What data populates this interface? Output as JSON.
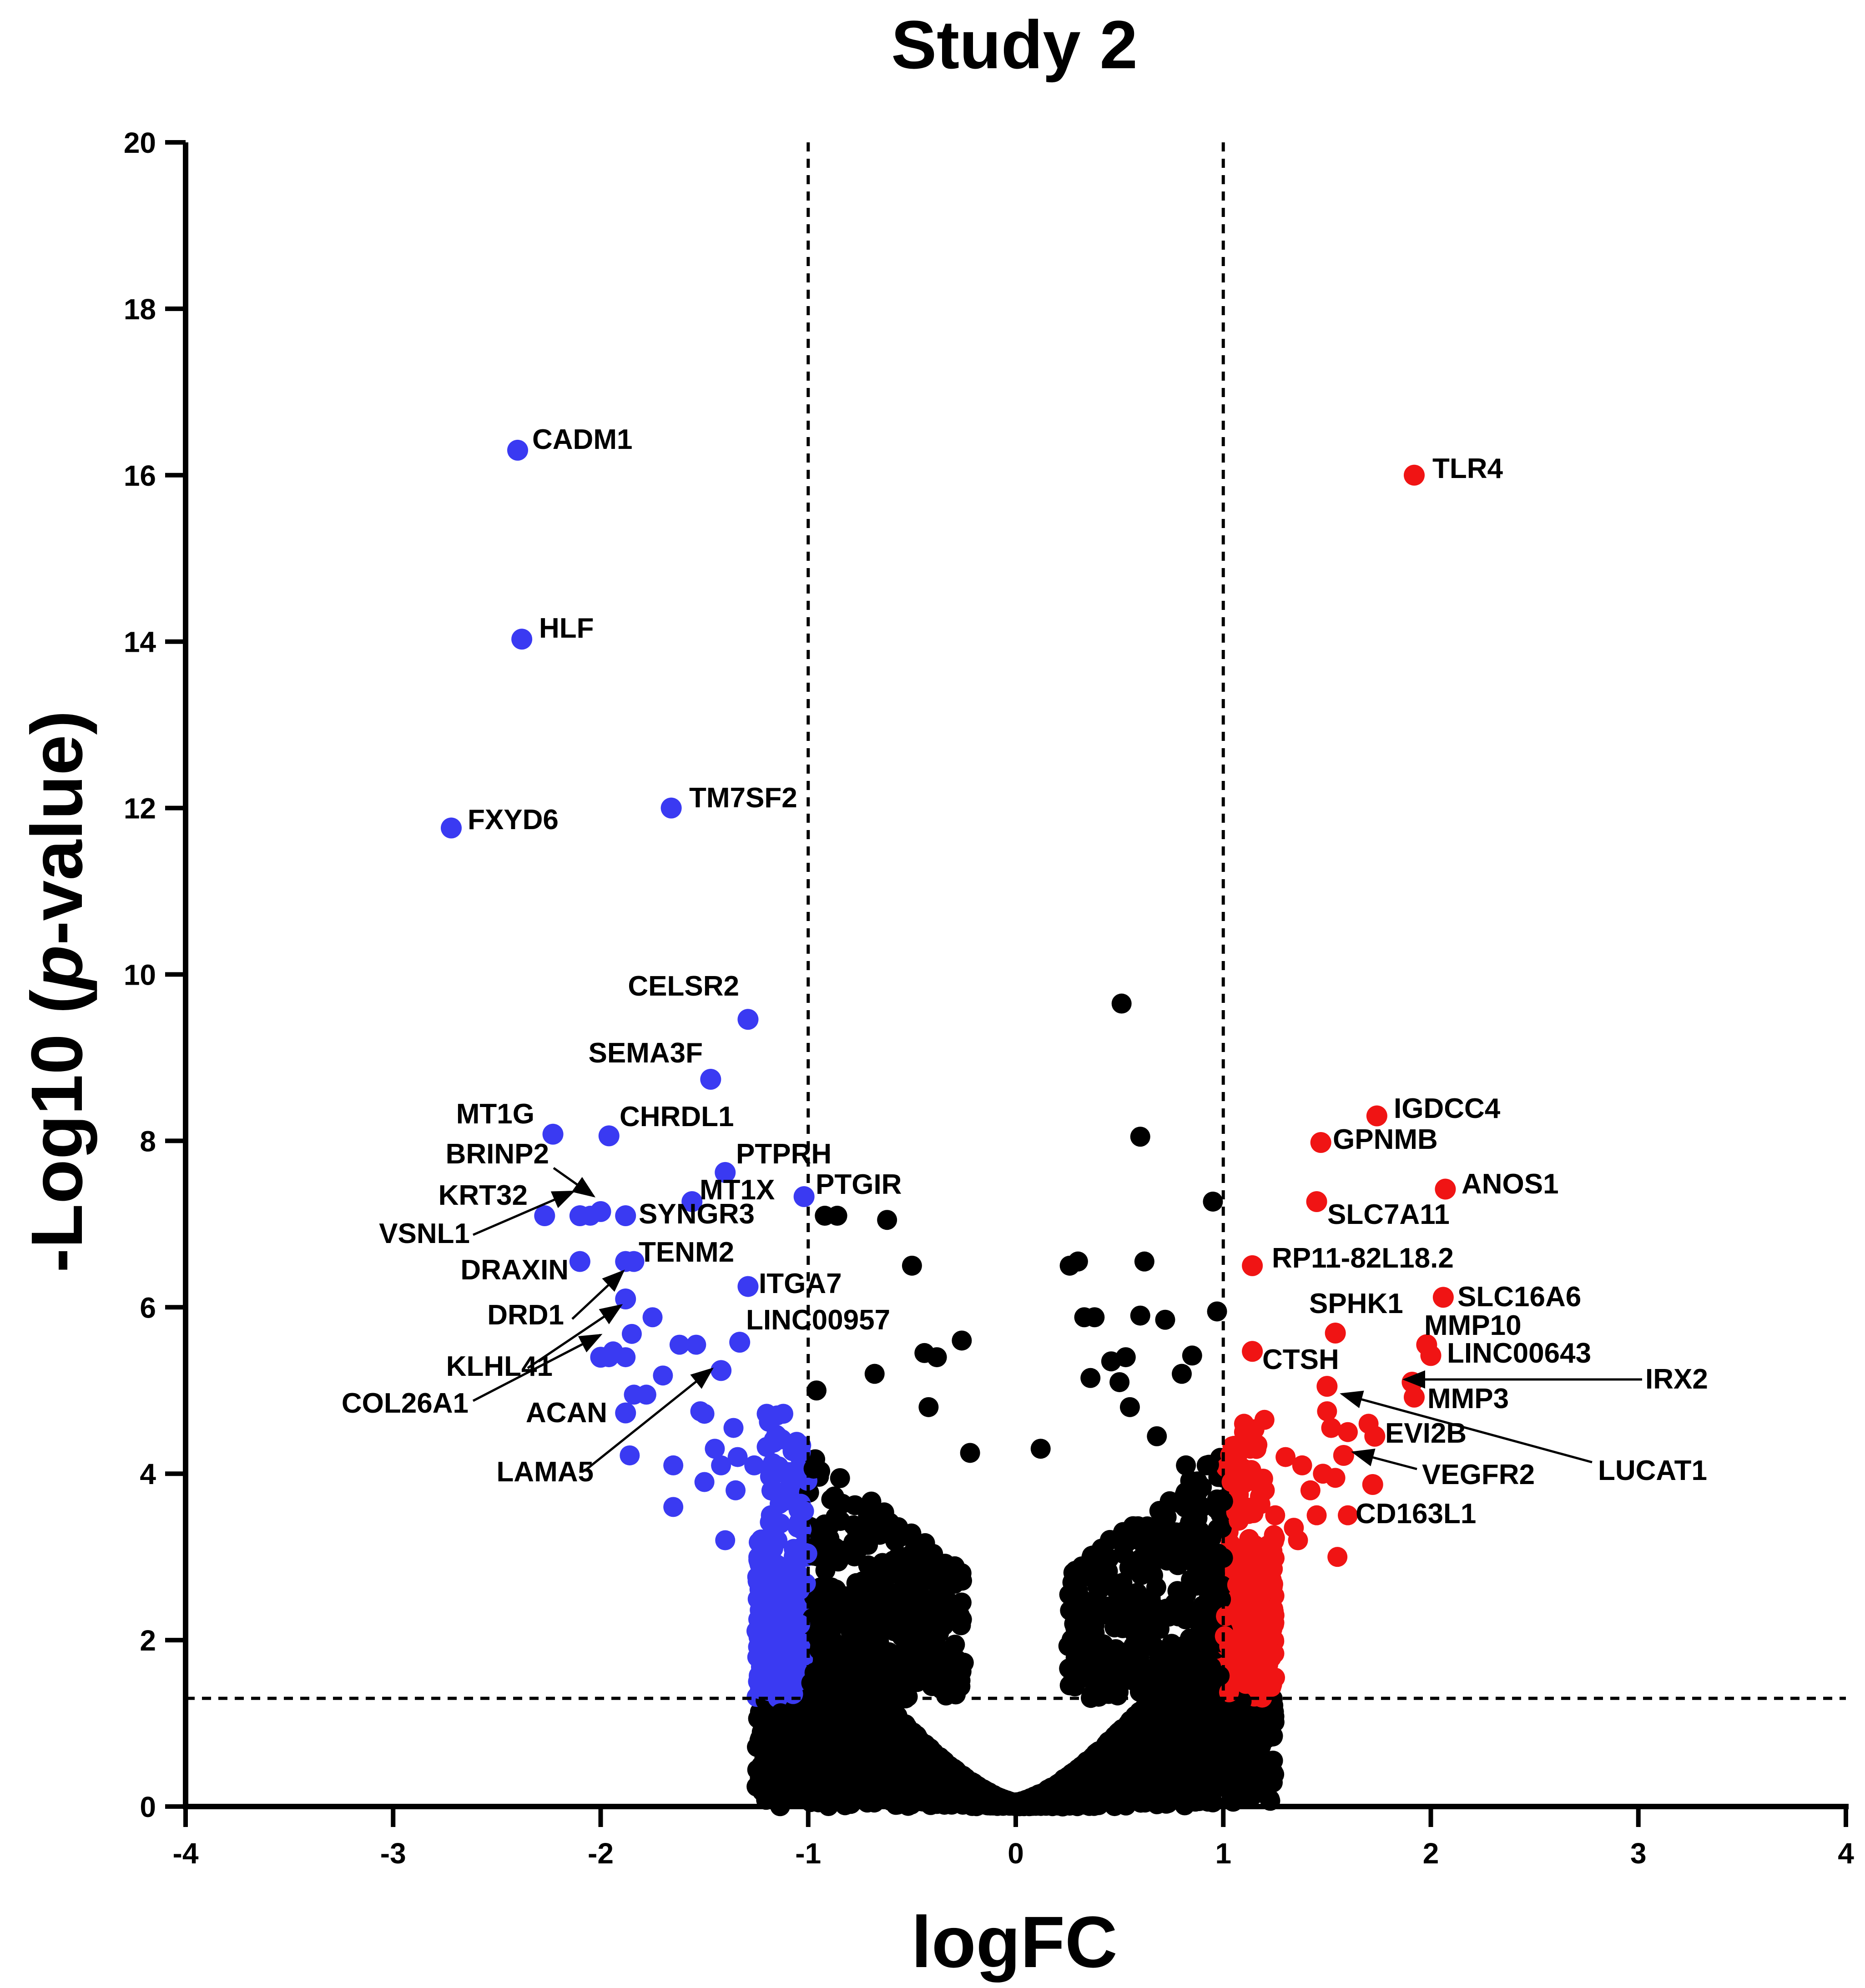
{
  "chart_data": {
    "type": "scatter",
    "title": "Study 2",
    "xlabel": "logFC",
    "ylabel": "-Log10 (p-value)",
    "xlim": [
      -4,
      4
    ],
    "ylim": [
      0,
      20
    ],
    "xticks": [
      -4,
      -3,
      -2,
      -1,
      0,
      1,
      2,
      3,
      4
    ],
    "yticks": [
      0,
      2,
      4,
      6,
      8,
      10,
      12,
      14,
      16,
      18,
      20
    ],
    "thresholds": {
      "logfc": [
        -1,
        1
      ],
      "neg_log10_p": 1.3
    },
    "colors": {
      "down": "#3a3af2",
      "up": "#f01414",
      "ns": "#000000"
    },
    "labeled_genes": [
      {
        "gene": "CADM1",
        "x": -2.4,
        "y": 16.3,
        "dir": "down"
      },
      {
        "gene": "HLF",
        "x": -2.38,
        "y": 14.03,
        "dir": "down"
      },
      {
        "gene": "FXYD6",
        "x": -2.72,
        "y": 11.76,
        "dir": "down"
      },
      {
        "gene": "TM7SF2",
        "x": -1.66,
        "y": 12.0,
        "dir": "down"
      },
      {
        "gene": "CELSR2",
        "x": -1.29,
        "y": 9.46,
        "dir": "down"
      },
      {
        "gene": "SEMA3F",
        "x": -1.47,
        "y": 8.74,
        "dir": "down"
      },
      {
        "gene": "MT1G",
        "x": -2.23,
        "y": 8.08,
        "dir": "down"
      },
      {
        "gene": "CHRDL1",
        "x": -1.96,
        "y": 8.06,
        "dir": "down"
      },
      {
        "gene": "BRINP2",
        "x": -2.0,
        "y": 7.15,
        "dir": "down"
      },
      {
        "gene": "PTPRH",
        "x": -1.4,
        "y": 7.62,
        "dir": "down"
      },
      {
        "gene": "MT1X",
        "x": -1.56,
        "y": 7.27,
        "dir": "down"
      },
      {
        "gene": "PTGIR",
        "x": -1.02,
        "y": 7.33,
        "dir": "down"
      },
      {
        "gene": "KRT32",
        "x": -2.27,
        "y": 7.1,
        "dir": "down"
      },
      {
        "gene": "SYNGR3",
        "x": -1.88,
        "y": 7.1,
        "dir": "down"
      },
      {
        "gene": "VSNL1",
        "x": -2.1,
        "y": 7.1,
        "dir": "down"
      },
      {
        "gene": "TENM2",
        "x": -1.84,
        "y": 6.55,
        "dir": "down"
      },
      {
        "gene": "DRAXIN",
        "x": -2.1,
        "y": 6.55,
        "dir": "down"
      },
      {
        "gene": "ITGA7",
        "x": -1.29,
        "y": 6.25,
        "dir": "down"
      },
      {
        "gene": "DRD1",
        "x": -1.88,
        "y": 6.55,
        "dir": "down"
      },
      {
        "gene": "LINC00957",
        "x": -1.33,
        "y": 5.58,
        "dir": "down"
      },
      {
        "gene": "KLHL41",
        "x": -1.88,
        "y": 6.1,
        "dir": "down"
      },
      {
        "gene": "COL26A1",
        "x": -2.0,
        "y": 5.4,
        "dir": "down"
      },
      {
        "gene": "ACAN",
        "x": -1.88,
        "y": 4.73,
        "dir": "down"
      },
      {
        "gene": "LAMA5",
        "x": -1.42,
        "y": 5.24,
        "dir": "down"
      },
      {
        "gene": "TLR4",
        "x": 1.92,
        "y": 16.0,
        "dir": "up"
      },
      {
        "gene": "IGDCC4",
        "x": 1.74,
        "y": 8.3,
        "dir": "up"
      },
      {
        "gene": "GPNMB",
        "x": 1.47,
        "y": 7.98,
        "dir": "up"
      },
      {
        "gene": "ANOS1",
        "x": 2.07,
        "y": 7.42,
        "dir": "up"
      },
      {
        "gene": "SLC7A11",
        "x": 1.45,
        "y": 7.27,
        "dir": "up"
      },
      {
        "gene": "RP11-82L18.2",
        "x": 1.14,
        "y": 6.5,
        "dir": "up"
      },
      {
        "gene": "SLC16A6",
        "x": 2.06,
        "y": 6.12,
        "dir": "up"
      },
      {
        "gene": "SPHK1",
        "x": 1.54,
        "y": 5.69,
        "dir": "up"
      },
      {
        "gene": "MMP10",
        "x": 1.98,
        "y": 5.55,
        "dir": "up"
      },
      {
        "gene": "LINC00643",
        "x": 2.0,
        "y": 5.42,
        "dir": "up"
      },
      {
        "gene": "CTSH",
        "x": 1.14,
        "y": 5.47,
        "dir": "up"
      },
      {
        "gene": "IRX2",
        "x": 1.91,
        "y": 5.1,
        "dir": "up"
      },
      {
        "gene": "MMP3",
        "x": 1.92,
        "y": 4.92,
        "dir": "up"
      },
      {
        "gene": "LUCAT1",
        "x": 1.5,
        "y": 5.05,
        "dir": "up"
      },
      {
        "gene": "EVI2B",
        "x": 1.73,
        "y": 4.45,
        "dir": "up"
      },
      {
        "gene": "VEGFR2",
        "x": 1.58,
        "y": 4.22,
        "dir": "up"
      },
      {
        "gene": "CD163L1",
        "x": 1.72,
        "y": 3.87,
        "dir": "up"
      }
    ],
    "other_significant": [
      {
        "x": -2.05,
        "y": 7.1
      },
      {
        "x": -1.96,
        "y": 5.4
      },
      {
        "x": -1.85,
        "y": 5.68
      },
      {
        "x": -1.88,
        "y": 5.4
      },
      {
        "x": -1.75,
        "y": 5.88
      },
      {
        "x": -1.62,
        "y": 5.55
      },
      {
        "x": -1.54,
        "y": 5.55
      },
      {
        "x": -1.7,
        "y": 5.18
      },
      {
        "x": -1.94,
        "y": 5.47
      },
      {
        "x": -1.84,
        "y": 4.95
      },
      {
        "x": -1.78,
        "y": 4.95
      },
      {
        "x": -1.52,
        "y": 4.75
      },
      {
        "x": -1.5,
        "y": 4.72
      },
      {
        "x": -1.86,
        "y": 4.22
      },
      {
        "x": -1.45,
        "y": 4.3
      },
      {
        "x": -1.36,
        "y": 4.55
      },
      {
        "x": -1.15,
        "y": 4.7
      },
      {
        "x": -1.12,
        "y": 4.72
      },
      {
        "x": -1.2,
        "y": 4.72
      },
      {
        "x": -1.65,
        "y": 4.1
      },
      {
        "x": -1.42,
        "y": 4.1
      },
      {
        "x": -1.34,
        "y": 4.2
      },
      {
        "x": -1.26,
        "y": 4.1
      },
      {
        "x": -1.18,
        "y": 4.0
      },
      {
        "x": -1.08,
        "y": 4.02
      },
      {
        "x": -1.5,
        "y": 3.9
      },
      {
        "x": -1.35,
        "y": 3.8
      },
      {
        "x": -1.65,
        "y": 3.6
      },
      {
        "x": -1.18,
        "y": 3.5
      },
      {
        "x": -1.2,
        "y": 3.05
      },
      {
        "x": -1.02,
        "y": 3.55
      },
      {
        "x": -1.4,
        "y": 3.2
      },
      {
        "x": -1.08,
        "y": 2.9
      },
      {
        "x": 0.96,
        "y": 2.8
      },
      {
        "x": 1.04,
        "y": 3.9
      },
      {
        "x": 1.1,
        "y": 4.5
      },
      {
        "x": 1.13,
        "y": 4.3
      },
      {
        "x": 1.2,
        "y": 3.8
      },
      {
        "x": 1.3,
        "y": 4.2
      },
      {
        "x": 1.38,
        "y": 4.1
      },
      {
        "x": 1.42,
        "y": 3.8
      },
      {
        "x": 1.52,
        "y": 4.55
      },
      {
        "x": 1.6,
        "y": 4.5
      },
      {
        "x": 1.7,
        "y": 4.6
      },
      {
        "x": 1.54,
        "y": 3.95
      },
      {
        "x": 1.34,
        "y": 3.35
      },
      {
        "x": 1.45,
        "y": 3.5
      },
      {
        "x": 1.6,
        "y": 3.5
      },
      {
        "x": 1.48,
        "y": 4.0
      },
      {
        "x": 1.1,
        "y": 4.6
      },
      {
        "x": 1.36,
        "y": 3.2
      },
      {
        "x": 1.25,
        "y": 3.5
      },
      {
        "x": 1.5,
        "y": 4.75
      },
      {
        "x": 1.55,
        "y": 3.0
      }
    ],
    "nonsignificant_highlights": [
      {
        "x": 0.51,
        "y": 9.65
      },
      {
        "x": 0.6,
        "y": 8.05
      },
      {
        "x": 0.95,
        "y": 7.27
      },
      {
        "x": -0.92,
        "y": 7.1
      },
      {
        "x": -0.86,
        "y": 7.1
      },
      {
        "x": -0.62,
        "y": 7.05
      },
      {
        "x": 0.26,
        "y": 6.5
      },
      {
        "x": 0.3,
        "y": 6.55
      },
      {
        "x": 0.62,
        "y": 6.55
      },
      {
        "x": -0.5,
        "y": 6.5
      },
      {
        "x": 0.97,
        "y": 5.95
      },
      {
        "x": 0.33,
        "y": 5.88
      },
      {
        "x": 0.72,
        "y": 5.85
      },
      {
        "x": 0.38,
        "y": 5.88
      },
      {
        "x": 0.6,
        "y": 5.9
      },
      {
        "x": -0.26,
        "y": 5.6
      },
      {
        "x": -0.44,
        "y": 5.45
      },
      {
        "x": -0.38,
        "y": 5.4
      },
      {
        "x": 0.85,
        "y": 5.42
      },
      {
        "x": 0.46,
        "y": 5.35
      },
      {
        "x": 0.53,
        "y": 5.4
      },
      {
        "x": -0.68,
        "y": 5.2
      },
      {
        "x": 0.8,
        "y": 5.2
      },
      {
        "x": 0.36,
        "y": 5.15
      },
      {
        "x": 0.5,
        "y": 5.1
      },
      {
        "x": -0.96,
        "y": 5.0
      },
      {
        "x": 0.55,
        "y": 4.8
      },
      {
        "x": -0.42,
        "y": 4.8
      },
      {
        "x": 0.68,
        "y": 4.45
      },
      {
        "x": 0.82,
        "y": 4.1
      },
      {
        "x": 0.92,
        "y": 4.1
      },
      {
        "x": -0.22,
        "y": 4.25
      },
      {
        "x": 0.12,
        "y": 4.3
      }
    ],
    "background_cloud": "dense distribution of genes below the thresholds, forming a V-shaped volcano envelope"
  }
}
